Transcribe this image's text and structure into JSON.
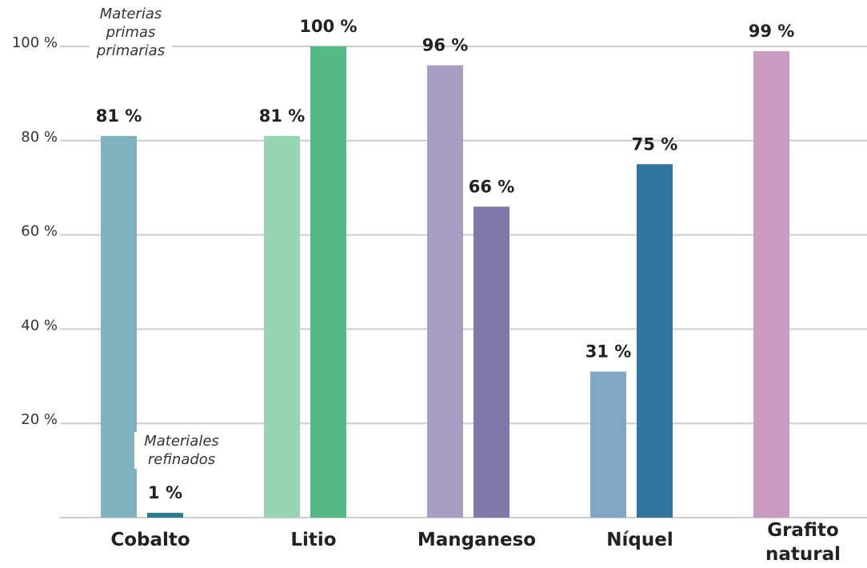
{
  "chart_data": {
    "type": "bar",
    "categories": [
      "Cobalto",
      "Litio",
      "Manganeso",
      "Níquel",
      "Grafito natural"
    ],
    "series": [
      {
        "name": "Materias primas primarias",
        "colors": [
          "#7fb2bf",
          "#95d5b2",
          "#a69fc2",
          "#80a8c6",
          "#c99bc0"
        ],
        "values": [
          81,
          81,
          96,
          31,
          99
        ],
        "value_labels": [
          "81 %",
          "81 %",
          "96 %",
          "31 %",
          "99 %"
        ]
      },
      {
        "name": "Materiales refinados",
        "colors": [
          "#2a7d8e",
          "#55b985",
          "#8078aa",
          "#31749f",
          "#31749f"
        ],
        "values": [
          1,
          100,
          66,
          75,
          null
        ],
        "value_labels": [
          "1 %",
          "100 %",
          "66 %",
          "75 %",
          null
        ]
      }
    ],
    "ylim": [
      0,
      100
    ],
    "yticks": [
      {
        "value": 20,
        "label": "20 %"
      },
      {
        "value": 40,
        "label": "40 %"
      },
      {
        "value": 60,
        "label": "60 %"
      },
      {
        "value": 80,
        "label": "80 %"
      },
      {
        "value": 100,
        "label": "100 %"
      }
    ],
    "grid": true
  }
}
